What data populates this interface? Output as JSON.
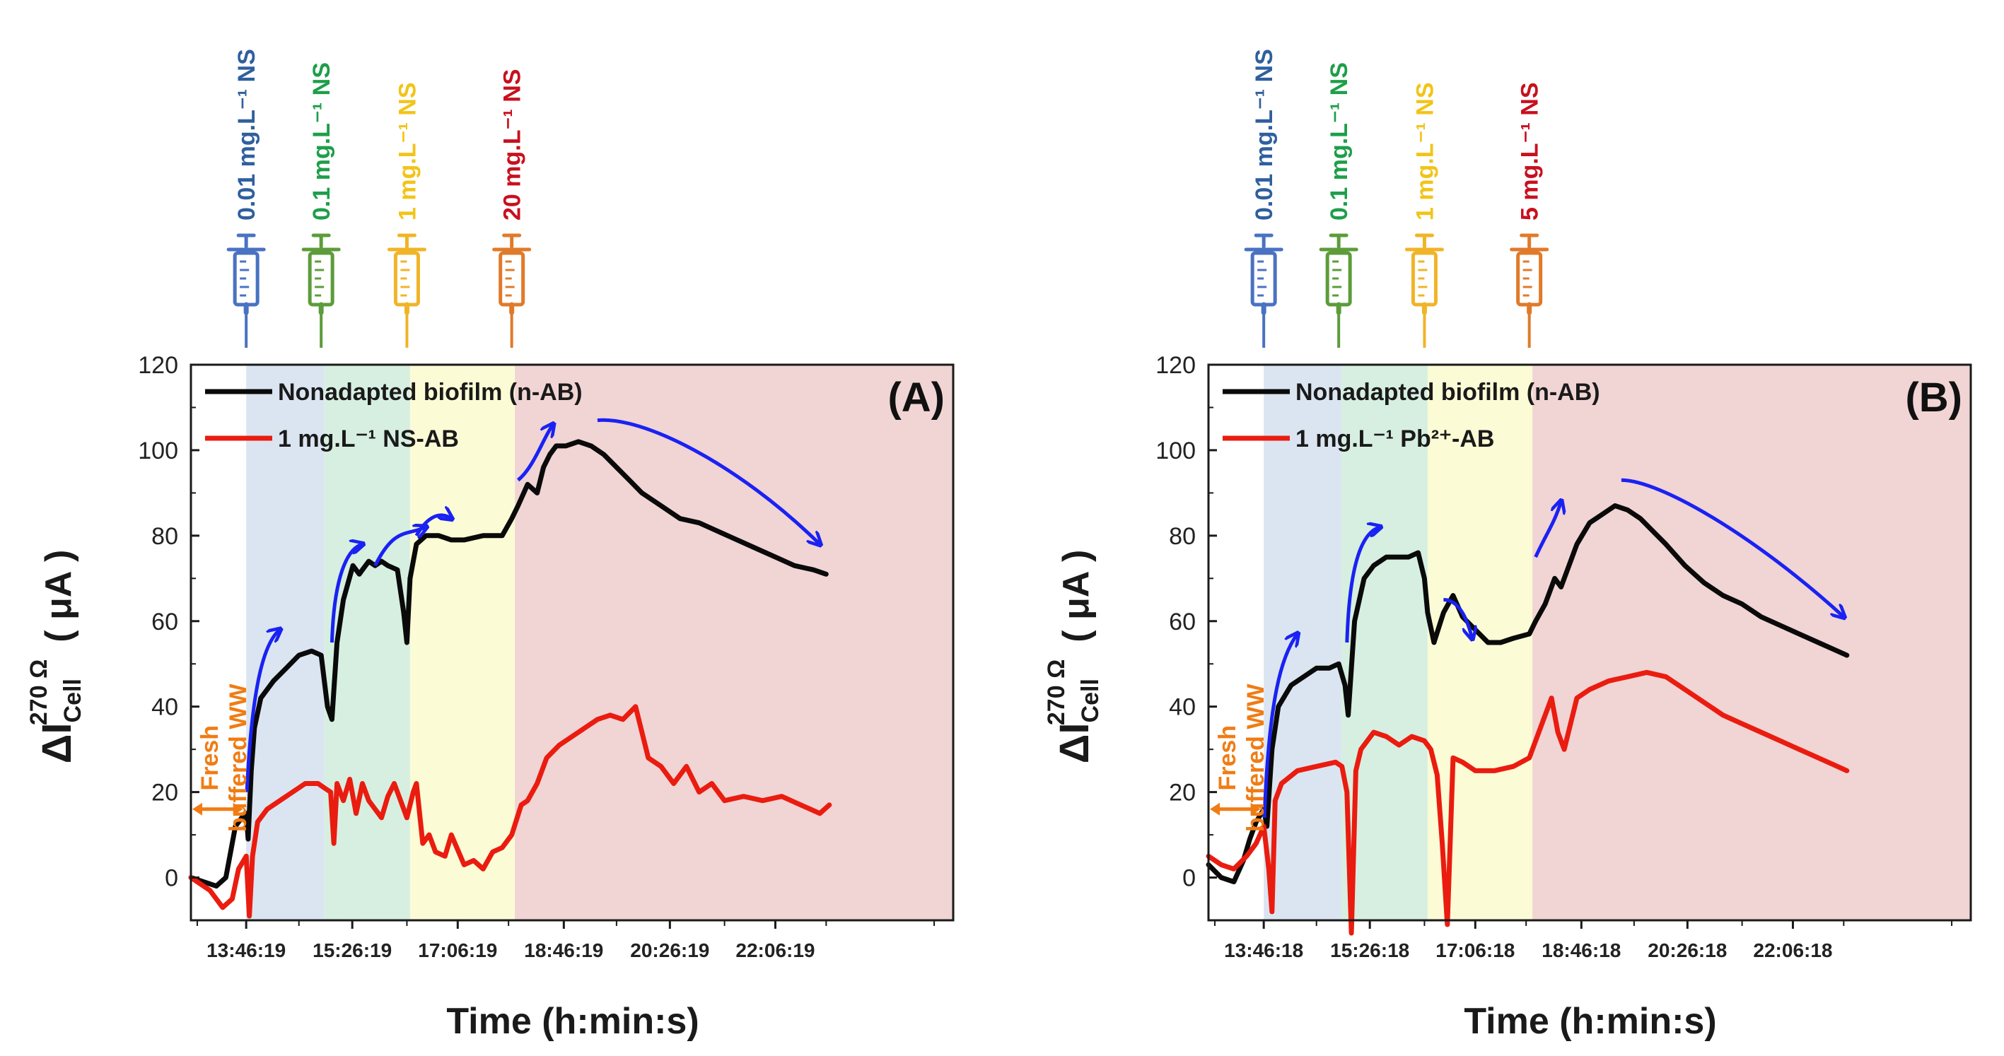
{
  "chart_data": [
    {
      "panel": "A",
      "type": "line",
      "panel_label": "(A)",
      "ylabel_main": "ΔI",
      "ylabel_sub": "Cell",
      "ylabel_sup": "270 Ω",
      "ylabel_unit": "( μA )",
      "xlabel": "Time (h:min:s)",
      "ylim": [
        -10,
        120
      ],
      "yticks": [
        0,
        20,
        40,
        60,
        80,
        100,
        120
      ],
      "xlim": [
        12.9,
        24.9
      ],
      "xtick_positions": [
        13.77,
        15.44,
        17.1,
        18.77,
        20.44,
        22.1
      ],
      "xtick_labels": [
        "13:46:19",
        "15:26:19",
        "17:06:19",
        "18:46:19",
        "20:26:19",
        "22:06:19"
      ],
      "minor_tick_positions": [
        13.0,
        14.6,
        16.3,
        17.9,
        19.6,
        21.3,
        22.9,
        24.6
      ],
      "regions": [
        {
          "from": 13.77,
          "to": 15.0,
          "color": "#dbe5f1"
        },
        {
          "from": 15.0,
          "to": 16.35,
          "color": "#d6efe1"
        },
        {
          "from": 16.35,
          "to": 18.0,
          "color": "#fbfbd5"
        },
        {
          "from": 18.0,
          "to": 24.9,
          "color": "#f1d4d4"
        }
      ],
      "injections": [
        {
          "x": 13.77,
          "label": "0.01 mg.L⁻¹ NS",
          "color": "#2f5f9e",
          "syringe_color": "#4a72c2"
        },
        {
          "x": 14.95,
          "label": "0.1 mg.L⁻¹ NS",
          "color": "#1e9e4a",
          "syringe_color": "#5c9c3a"
        },
        {
          "x": 16.3,
          "label": "1 mg.L⁻¹ NS",
          "color": "#f2c418",
          "syringe_color": "#f0b428"
        },
        {
          "x": 17.95,
          "label": "20 mg.L⁻¹ NS",
          "color": "#c8101e",
          "syringe_color": "#e07a2a"
        }
      ],
      "series": [
        {
          "name": "Nonadapted biofilm (n-AB)",
          "color": "#0a0a0a",
          "x": [
            12.9,
            13.1,
            13.3,
            13.45,
            13.55,
            13.6,
            13.7,
            13.77,
            13.8,
            13.85,
            13.9,
            14.0,
            14.2,
            14.4,
            14.6,
            14.8,
            14.95,
            15.05,
            15.12,
            15.2,
            15.3,
            15.45,
            15.55,
            15.6,
            15.7,
            15.8,
            15.9,
            16.0,
            16.15,
            16.25,
            16.3,
            16.35,
            16.45,
            16.6,
            16.8,
            17.0,
            17.2,
            17.5,
            17.8,
            17.95,
            18.05,
            18.2,
            18.35,
            18.45,
            18.55,
            18.65,
            18.8,
            19.0,
            19.2,
            19.4,
            19.6,
            19.8,
            20.0,
            20.3,
            20.6,
            20.9,
            21.2,
            21.5,
            21.8,
            22.1,
            22.4,
            22.7,
            22.9
          ],
          "y": [
            0,
            -1,
            -2,
            0,
            8,
            12,
            14,
            15,
            9,
            25,
            35,
            42,
            46,
            49,
            52,
            53,
            52,
            40,
            37,
            55,
            65,
            73,
            71,
            72,
            74,
            73,
            74,
            73,
            72,
            62,
            55,
            70,
            78,
            80,
            80,
            79,
            79,
            80,
            80,
            84,
            87,
            92,
            90,
            96,
            99,
            101,
            101,
            102,
            101,
            99,
            96,
            93,
            90,
            87,
            84,
            83,
            81,
            79,
            77,
            75,
            73,
            72,
            71
          ]
        },
        {
          "name": "1 mg.L⁻¹ NS-AB",
          "color": "#ea1c10",
          "x": [
            12.9,
            13.2,
            13.4,
            13.55,
            13.65,
            13.77,
            13.82,
            13.87,
            13.95,
            14.1,
            14.3,
            14.5,
            14.7,
            14.9,
            15.0,
            15.1,
            15.15,
            15.2,
            15.3,
            15.4,
            15.5,
            15.6,
            15.7,
            15.8,
            15.9,
            16.0,
            16.1,
            16.2,
            16.3,
            16.4,
            16.45,
            16.55,
            16.65,
            16.75,
            16.9,
            17.0,
            17.2,
            17.35,
            17.5,
            17.65,
            17.8,
            17.95,
            18.1,
            18.2,
            18.35,
            18.5,
            18.7,
            18.9,
            19.1,
            19.3,
            19.5,
            19.7,
            19.9,
            20.1,
            20.3,
            20.5,
            20.7,
            20.9,
            21.1,
            21.3,
            21.6,
            21.9,
            22.2,
            22.5,
            22.8,
            22.95
          ],
          "y": [
            0,
            -3,
            -7,
            -5,
            2,
            5,
            -9,
            5,
            13,
            16,
            18,
            20,
            22,
            22,
            21,
            20,
            8,
            22,
            18,
            23,
            15,
            22,
            18,
            16,
            14,
            19,
            22,
            18,
            14,
            20,
            22,
            8,
            10,
            6,
            5,
            10,
            3,
            4,
            2,
            6,
            7,
            10,
            17,
            18,
            22,
            28,
            31,
            33,
            35,
            37,
            38,
            37,
            40,
            28,
            26,
            22,
            26,
            20,
            22,
            18,
            19,
            18,
            19,
            17,
            15,
            17
          ]
        }
      ],
      "arrows": [
        [
          [
            13.78,
            20
          ],
          [
            13.86,
            45
          ],
          [
            14.05,
            55
          ],
          [
            14.3,
            58
          ]
        ],
        [
          [
            15.12,
            55
          ],
          [
            15.15,
            70
          ],
          [
            15.35,
            77
          ],
          [
            15.6,
            78
          ]
        ],
        [
          [
            15.8,
            73
          ],
          [
            16.1,
            82
          ],
          [
            16.3,
            80
          ],
          [
            16.6,
            82
          ]
        ],
        [
          [
            16.45,
            80
          ],
          [
            16.6,
            84
          ],
          [
            16.8,
            86
          ],
          [
            17.0,
            84
          ]
        ],
        [
          [
            18.05,
            93
          ],
          [
            18.3,
            96
          ],
          [
            18.45,
            103
          ],
          [
            18.6,
            106
          ]
        ],
        [
          [
            19.3,
            107
          ],
          [
            20.0,
            108
          ],
          [
            21.5,
            97
          ],
          [
            22.8,
            78
          ]
        ]
      ],
      "fresh_ww": "Fresh buffered WW",
      "fresh_ww_line1": "Fresh",
      "fresh_ww_line2": "buffered WW"
    },
    {
      "panel": "B",
      "type": "line",
      "panel_label": "(B)",
      "ylabel_main": "ΔI",
      "ylabel_sub": "Cell",
      "ylabel_sup": "270 Ω",
      "ylabel_unit": "( μA )",
      "xlabel": "Time (h:min:s)",
      "ylim": [
        -10,
        120
      ],
      "yticks": [
        0,
        20,
        40,
        60,
        80,
        100,
        120
      ],
      "xlim": [
        12.9,
        24.9
      ],
      "xtick_positions": [
        13.77,
        15.44,
        17.1,
        18.77,
        20.44,
        22.1
      ],
      "xtick_labels": [
        "13:46:18",
        "15:26:18",
        "17:06:18",
        "18:46:18",
        "20:26:18",
        "22:06:18"
      ],
      "minor_tick_positions": [
        13.0,
        14.6,
        16.3,
        17.9,
        19.6,
        21.3,
        22.9,
        24.6
      ],
      "regions": [
        {
          "from": 13.77,
          "to": 15.0,
          "color": "#dbe5f1"
        },
        {
          "from": 15.0,
          "to": 16.35,
          "color": "#d6efe1"
        },
        {
          "from": 16.35,
          "to": 18.0,
          "color": "#fbfbd5"
        },
        {
          "from": 18.0,
          "to": 24.9,
          "color": "#f1d4d4"
        }
      ],
      "injections": [
        {
          "x": 13.77,
          "label": "0.01 mg.L⁻¹ NS",
          "color": "#2f5f9e",
          "syringe_color": "#4a72c2"
        },
        {
          "x": 14.95,
          "label": "0.1 mg.L⁻¹ NS",
          "color": "#1e9e4a",
          "syringe_color": "#5c9c3a"
        },
        {
          "x": 16.3,
          "label": "1 mg.L⁻¹ NS",
          "color": "#f2c418",
          "syringe_color": "#f0b428"
        },
        {
          "x": 17.95,
          "label": "5 mg.L⁻¹ NS",
          "color": "#c8101e",
          "syringe_color": "#e07a2a"
        }
      ],
      "series": [
        {
          "name": "Nonadapted biofilm (n-AB)",
          "color": "#0a0a0a",
          "x": [
            12.9,
            13.1,
            13.3,
            13.45,
            13.55,
            13.65,
            13.77,
            13.82,
            13.9,
            14.0,
            14.2,
            14.4,
            14.6,
            14.8,
            14.95,
            15.05,
            15.1,
            15.2,
            15.35,
            15.5,
            15.7,
            15.9,
            16.05,
            16.2,
            16.3,
            16.35,
            16.45,
            16.6,
            16.75,
            16.9,
            17.1,
            17.3,
            17.5,
            17.7,
            17.95,
            18.05,
            18.2,
            18.35,
            18.45,
            18.55,
            18.7,
            18.9,
            19.1,
            19.3,
            19.5,
            19.7,
            19.9,
            20.1,
            20.4,
            20.7,
            21.0,
            21.3,
            21.6,
            21.9,
            22.2,
            22.5,
            22.8,
            22.95
          ],
          "y": [
            3,
            0,
            -1,
            4,
            9,
            13,
            16,
            12,
            30,
            40,
            45,
            47,
            49,
            49,
            50,
            45,
            38,
            60,
            70,
            73,
            75,
            75,
            75,
            76,
            70,
            62,
            55,
            62,
            66,
            61,
            58,
            55,
            55,
            56,
            57,
            60,
            64,
            70,
            68,
            72,
            78,
            83,
            85,
            87,
            86,
            84,
            81,
            78,
            73,
            69,
            66,
            64,
            61,
            59,
            57,
            55,
            53,
            52
          ]
        },
        {
          "name": "1 mg.L⁻¹ Pb²⁺-AB",
          "color": "#ea1c10",
          "x": [
            12.9,
            13.1,
            13.3,
            13.5,
            13.65,
            13.77,
            13.85,
            13.9,
            13.95,
            14.05,
            14.3,
            14.6,
            14.9,
            15.0,
            15.08,
            15.15,
            15.22,
            15.3,
            15.5,
            15.7,
            15.9,
            16.1,
            16.3,
            16.4,
            16.5,
            16.58,
            16.66,
            16.75,
            16.9,
            17.1,
            17.4,
            17.7,
            17.95,
            18.1,
            18.2,
            18.3,
            18.4,
            18.5,
            18.7,
            18.9,
            19.2,
            19.5,
            19.8,
            20.1,
            20.4,
            20.7,
            21.0,
            21.3,
            21.6,
            21.9,
            22.2,
            22.5,
            22.8,
            22.95
          ],
          "y": [
            5,
            3,
            2,
            5,
            8,
            12,
            2,
            -8,
            18,
            22,
            25,
            26,
            27,
            26,
            20,
            -13,
            25,
            30,
            34,
            33,
            31,
            33,
            32,
            30,
            24,
            8,
            -11,
            28,
            27,
            25,
            25,
            26,
            28,
            34,
            38,
            42,
            34,
            30,
            42,
            44,
            46,
            47,
            48,
            47,
            44,
            41,
            38,
            36,
            34,
            32,
            30,
            28,
            26,
            25
          ]
        }
      ],
      "arrows": [
        [
          [
            13.78,
            14
          ],
          [
            13.85,
            42
          ],
          [
            14.05,
            52
          ],
          [
            14.3,
            57
          ]
        ],
        [
          [
            15.08,
            55
          ],
          [
            15.12,
            75
          ],
          [
            15.35,
            81
          ],
          [
            15.6,
            82
          ]
        ],
        [
          [
            16.6,
            65
          ],
          [
            16.8,
            65
          ],
          [
            16.95,
            62
          ],
          [
            17.05,
            56
          ]
        ],
        [
          [
            18.05,
            75
          ],
          [
            18.2,
            80
          ],
          [
            18.35,
            83
          ],
          [
            18.45,
            88
          ]
        ],
        [
          [
            19.4,
            93
          ],
          [
            20.0,
            93
          ],
          [
            21.5,
            80
          ],
          [
            22.9,
            61
          ]
        ]
      ],
      "fresh_ww": "Fresh buffered WW",
      "fresh_ww_line1": "Fresh",
      "fresh_ww_line2": "buffered WW"
    }
  ]
}
